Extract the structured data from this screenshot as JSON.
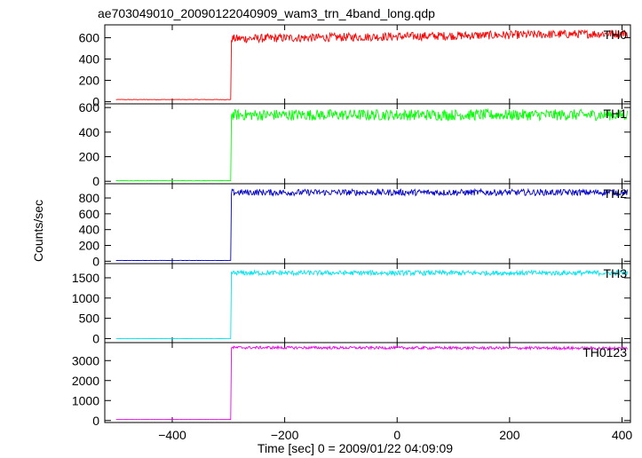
{
  "chart_data": {
    "type": "line",
    "title": "ae703049010_20090122040909_wam3_trn_4band_long.qdp",
    "xlabel": "Time [sec] 0 = 2009/01/22 04:09:09",
    "ylabel": "Counts/sec",
    "xlim": [
      -520,
      415
    ],
    "xticks": [
      -400,
      -200,
      0,
      200,
      400
    ],
    "step_time": -296,
    "grid": false,
    "panels": [
      {
        "name": "TH0",
        "color": "#ff0000",
        "ylim": [
          -20,
          720
        ],
        "yticks": [
          0,
          200,
          400,
          600
        ],
        "levels": {
          "pre": 20,
          "post_start": 590,
          "post_end": 640
        },
        "noise": 40
      },
      {
        "name": "TH1",
        "color": "#00ff00",
        "ylim": [
          -20,
          630
        ],
        "yticks": [
          0,
          200,
          400,
          600
        ],
        "levels": {
          "pre": 5,
          "post_start": 540,
          "post_end": 540
        },
        "noise": 45
      },
      {
        "name": "TH2",
        "color": "#0000cc",
        "ylim": [
          -30,
          980
        ],
        "yticks": [
          0,
          200,
          400,
          600,
          800
        ],
        "levels": {
          "pre": 10,
          "post_start": 870,
          "post_end": 870
        },
        "noise": 40
      },
      {
        "name": "TH3",
        "color": "#00e5ee",
        "ylim": [
          -100,
          1850
        ],
        "yticks": [
          0,
          500,
          1000,
          1500
        ],
        "levels": {
          "pre": 0,
          "post_start": 1620,
          "post_end": 1620
        },
        "noise": 60
      },
      {
        "name": "TH0123",
        "color": "#ee00ee",
        "ylim": [
          -100,
          3900
        ],
        "yticks": [
          0,
          1000,
          2000,
          3000
        ],
        "levels": {
          "pre": 50,
          "post_start": 3650,
          "post_end": 3620
        },
        "noise": 70
      }
    ]
  }
}
